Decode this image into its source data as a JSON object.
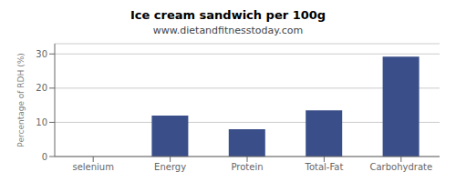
{
  "chart_data": {
    "type": "bar",
    "title": "Ice cream sandwich per 100g",
    "subtitle": "www.dietandfitnesstoday.com",
    "categories": [
      "selenium",
      "Energy",
      "Protein",
      "Total-Fat",
      "Carbohydrate"
    ],
    "values": [
      0,
      12,
      8,
      13.5,
      29.2
    ],
    "color": "#3a4f8a",
    "ylabel": "Percentage of RDH (%)",
    "ylim": [
      0,
      33
    ],
    "yticks": [
      0,
      10,
      20,
      30
    ],
    "grid": true
  }
}
